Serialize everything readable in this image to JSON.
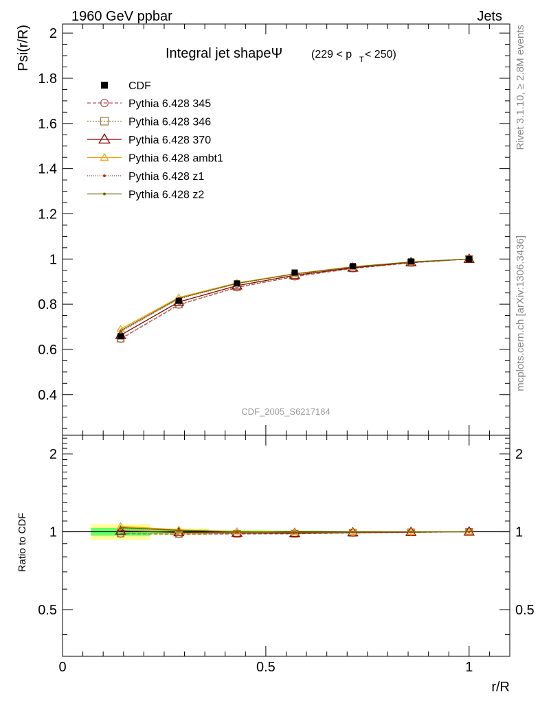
{
  "header": {
    "left": "1960 GeV ppbar",
    "right": "Jets"
  },
  "side_labels": {
    "rivet": "Rivet 3.1.10, ≥ 2.8M events",
    "mcplots": "mcplots.cern.ch [arXiv:1306.3436]"
  },
  "chart_data": [
    {
      "type": "line",
      "title_main": "Integral jet shapeΨ",
      "title_range": "(229 < p",
      "title_sub": "T",
      "title_tail": " < 250)",
      "analysis_id": "CDF_2005_S6217184",
      "ylabel": "Psi(r/R)",
      "xlabel": "r/R",
      "xlim": [
        0,
        1.1
      ],
      "ylim": [
        0.22,
        2.04
      ],
      "yticks": [
        0.4,
        0.6,
        0.8,
        1,
        1.2,
        1.4,
        1.6,
        1.8,
        2
      ],
      "ytick_labels": [
        "0.4",
        "0.6",
        "0.8",
        "1",
        "1.2",
        "1.4",
        "1.6",
        "1.8",
        "2"
      ],
      "x": [
        0.143,
        0.286,
        0.429,
        0.571,
        0.714,
        0.857,
        1.0
      ],
      "reference": {
        "name": "CDF",
        "values": [
          0.658,
          0.815,
          0.892,
          0.94,
          0.968,
          0.989,
          1.0
        ]
      },
      "series": [
        {
          "name": "Pythia 6.428 345",
          "color": "#c44e5c",
          "dash": "5,3",
          "marker": "open-circle",
          "values": [
            0.646,
            0.797,
            0.874,
            0.922,
            0.958,
            0.983,
            1.0
          ]
        },
        {
          "name": "Pythia 6.428 346",
          "color": "#a07a3c",
          "dash": "2,2",
          "marker": "open-square",
          "values": [
            0.648,
            0.799,
            0.876,
            0.924,
            0.959,
            0.984,
            1.0
          ]
        },
        {
          "name": "Pythia 6.428 370",
          "color": "#8b0000",
          "dash": "",
          "marker": "open-triangle",
          "values": [
            0.663,
            0.81,
            0.882,
            0.928,
            0.961,
            0.985,
            1.0
          ]
        },
        {
          "name": "Pythia 6.428 ambt1",
          "color": "#ff9f00",
          "dash": "",
          "marker": "open-triangle-small",
          "values": [
            0.69,
            0.83,
            0.894,
            0.935,
            0.966,
            0.987,
            1.0
          ]
        },
        {
          "name": "Pythia 6.428 z1",
          "color": "#d22020",
          "dash": "1,2",
          "marker": "dot",
          "values": [
            0.679,
            0.824,
            0.891,
            0.933,
            0.964,
            0.986,
            1.0
          ]
        },
        {
          "name": "Pythia 6.428 z2",
          "color": "#6b6b00",
          "dash": "",
          "marker": "dot",
          "values": [
            0.683,
            0.826,
            0.892,
            0.934,
            0.965,
            0.987,
            1.0
          ]
        }
      ]
    },
    {
      "type": "line",
      "ylabel": "Ratio to CDF",
      "xlabel": "r/R",
      "xlim": [
        0,
        1.1
      ],
      "ylim": [
        0.33,
        2.36
      ],
      "yscale": "log",
      "yticks": [
        0.5,
        1,
        2
      ],
      "ytick_labels": [
        "0.5",
        "1",
        "2"
      ],
      "xticks": [
        0,
        0.5,
        1
      ],
      "xtick_labels": [
        "0",
        "0.5",
        "1"
      ],
      "x": [
        0.143,
        0.286,
        0.429,
        0.571,
        0.714,
        0.857,
        1.0
      ],
      "band_colors": {
        "inner": "#66ff66",
        "outer": "#ffff99"
      },
      "band": {
        "x_edges": [
          [
            0.07,
            0.215
          ],
          [
            0.215,
            0.36
          ],
          [
            0.36,
            0.5
          ],
          [
            0.5,
            0.64
          ],
          [
            0.64,
            0.785
          ],
          [
            0.785,
            0.93
          ],
          [
            0.93,
            1.07
          ]
        ],
        "inner": [
          0.035,
          0.018,
          0.01,
          0.008,
          0.006,
          0.004,
          0.002
        ],
        "outer": [
          0.07,
          0.03,
          0.016,
          0.012,
          0.008,
          0.005,
          0.002
        ]
      },
      "series": [
        {
          "name": "Pythia 6.428 345",
          "values": [
            0.982,
            0.978,
            0.98,
            0.981,
            0.99,
            0.994,
            1.0
          ]
        },
        {
          "name": "Pythia 6.428 346",
          "values": [
            0.985,
            0.98,
            0.982,
            0.983,
            0.991,
            0.995,
            1.0
          ]
        },
        {
          "name": "Pythia 6.428 370",
          "values": [
            1.008,
            0.994,
            0.989,
            0.987,
            0.993,
            0.996,
            1.0
          ]
        },
        {
          "name": "Pythia 6.428 ambt1",
          "values": [
            1.049,
            1.018,
            1.002,
            0.995,
            0.998,
            0.998,
            1.0
          ]
        },
        {
          "name": "Pythia 6.428 z1",
          "values": [
            1.032,
            1.011,
            0.999,
            0.993,
            0.996,
            0.997,
            1.0
          ]
        },
        {
          "name": "Pythia 6.428 z2",
          "values": [
            1.038,
            1.013,
            1.0,
            0.994,
            0.997,
            0.998,
            1.0
          ]
        }
      ]
    }
  ]
}
